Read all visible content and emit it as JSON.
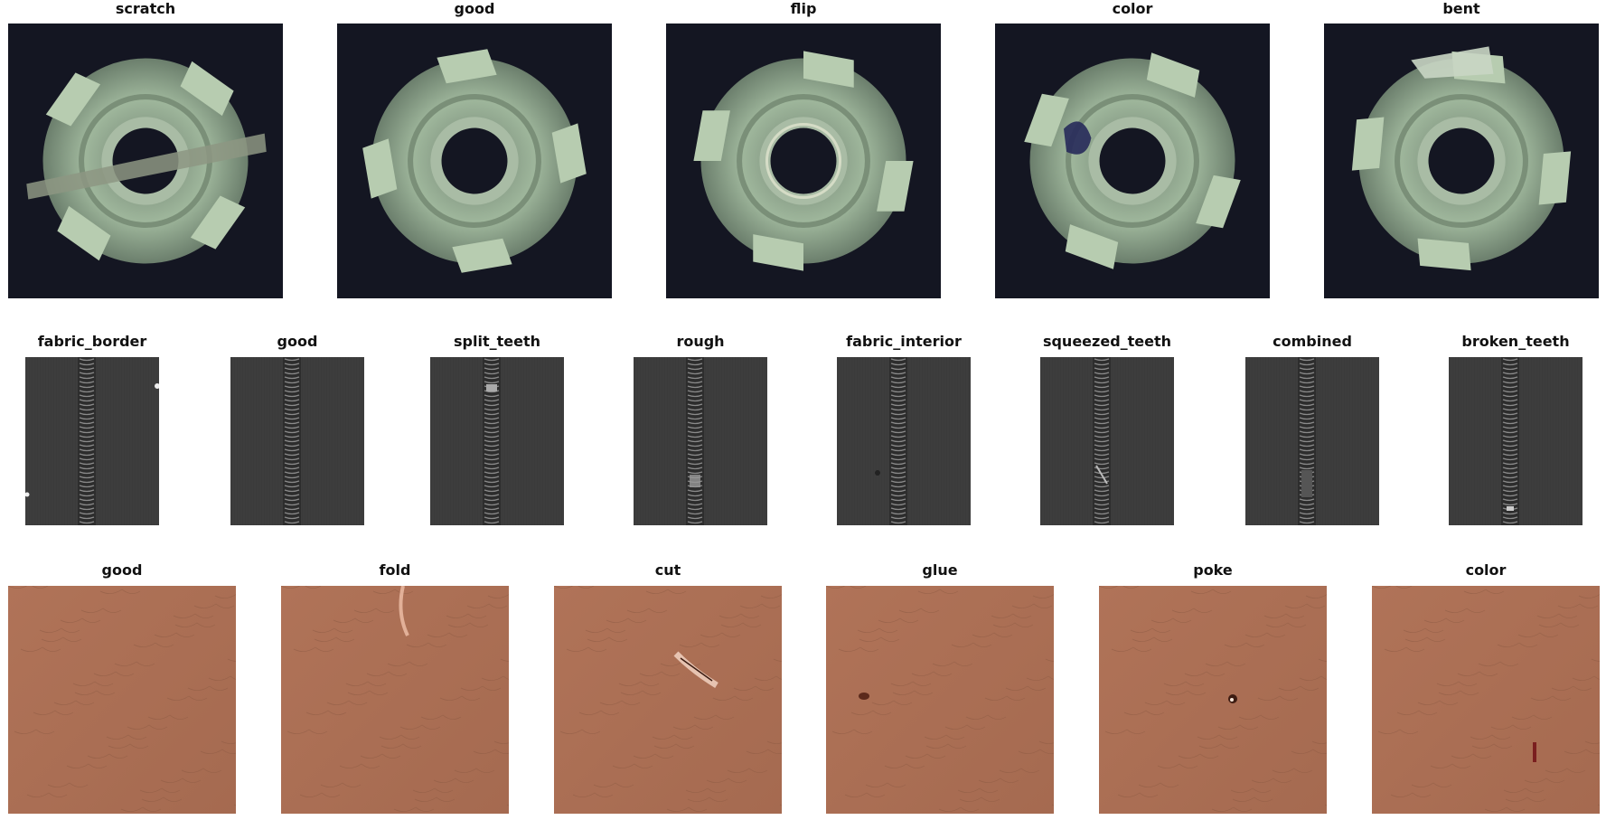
{
  "rows": [
    {
      "subject": "metal_nut",
      "panels": [
        {
          "label": "scratch",
          "defect": "scratch"
        },
        {
          "label": "good",
          "defect": "good"
        },
        {
          "label": "flip",
          "defect": "flip"
        },
        {
          "label": "color",
          "defect": "color"
        },
        {
          "label": "bent",
          "defect": "bent"
        }
      ]
    },
    {
      "subject": "zipper",
      "panels": [
        {
          "label": "fabric_border",
          "defect": "fabric_border"
        },
        {
          "label": "good",
          "defect": "good"
        },
        {
          "label": "split_teeth",
          "defect": "split_teeth"
        },
        {
          "label": "rough",
          "defect": "rough"
        },
        {
          "label": "fabric_interior",
          "defect": "fabric_interior"
        },
        {
          "label": "squeezed_teeth",
          "defect": "squeezed_teeth"
        },
        {
          "label": "combined",
          "defect": "combined"
        },
        {
          "label": "broken_teeth",
          "defect": "broken_teeth"
        }
      ]
    },
    {
      "subject": "leather",
      "panels": [
        {
          "label": "good",
          "defect": "good"
        },
        {
          "label": "fold",
          "defect": "fold"
        },
        {
          "label": "cut",
          "defect": "cut"
        },
        {
          "label": "glue",
          "defect": "glue"
        },
        {
          "label": "poke",
          "defect": "poke"
        },
        {
          "label": "color",
          "defect": "color"
        }
      ]
    }
  ],
  "colors": {
    "nut_background": "#141622",
    "nut_metal": "#9fb79c",
    "zipper_fabric": "#3b3b3b",
    "zipper_teeth": "#8a8a8a",
    "leather": "#a56a50",
    "leather_defect": "#7a1f1f"
  }
}
